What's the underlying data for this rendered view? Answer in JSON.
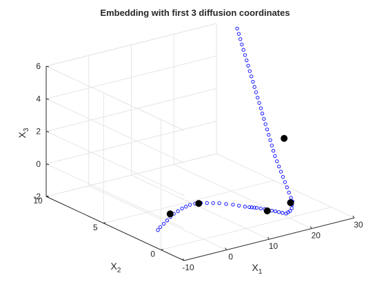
{
  "chart_data": {
    "type": "scatter",
    "projection": "3d",
    "title": "Embedding with first 3 diffusion coordinates",
    "xlabel": "X",
    "xlabel_sub": "1",
    "ylabel": "X",
    "ylabel_sub": "2",
    "zlabel": "X",
    "zlabel_sub": "3",
    "xlim": [
      -10,
      30
    ],
    "ylim": [
      -2,
      10
    ],
    "zlim": [
      -2,
      6
    ],
    "xticks": [
      "-10",
      "0",
      "10",
      "20",
      "30"
    ],
    "yticks": [
      "0",
      "5",
      "10"
    ],
    "zticks": [
      "-2",
      "0",
      "2",
      "4",
      "6"
    ],
    "grid": true,
    "colors": {
      "series": "#0000ff",
      "highlight": "#000000",
      "axis": "#262626",
      "grid": "#e6e6e6"
    },
    "series": [
      {
        "marker": "open-circle",
        "color": "#0000ff",
        "x": [
          -4.0,
          -2.6,
          -1.0,
          0.6,
          2.2,
          3.8,
          5.3,
          6.8,
          8.0,
          9.2,
          10.4,
          11.5,
          12.4,
          13.3,
          14.2,
          15.0,
          15.8,
          16.4,
          17.0,
          17.5,
          17.8,
          18.1,
          18.4,
          18.8,
          19.2,
          19.5,
          19.8,
          20.1,
          20.4,
          20.7,
          21.0,
          21.2,
          21.4,
          21.5,
          21.6,
          21.7,
          21.6,
          21.4,
          21.2,
          21.0,
          20.8,
          20.6,
          20.4,
          20.2,
          20.0,
          19.9,
          19.8,
          19.7,
          19.6,
          19.5,
          19.4,
          19.3,
          19.2,
          19.1,
          19.0,
          18.9,
          18.8,
          18.7,
          18.6,
          18.5,
          18.4,
          18.3,
          18.2,
          18.1,
          18.0,
          17.9,
          17.8,
          17.7,
          17.6
        ],
        "y": [
          2.5,
          2.8,
          3.1,
          3.4,
          3.7,
          4.0,
          4.2,
          4.4,
          4.5,
          4.6,
          4.6,
          4.5,
          4.3,
          4.1,
          3.9,
          3.6,
          3.3,
          3.0,
          2.7,
          2.5,
          2.4,
          2.3,
          2.2,
          2.0,
          1.8,
          1.6,
          1.4,
          1.2,
          1.0,
          0.8,
          0.6,
          0.5,
          0.4,
          0.3,
          0.3,
          0.3,
          0.4,
          0.5,
          0.6,
          0.7,
          0.8,
          0.9,
          1.0,
          1.1,
          1.2,
          1.3,
          1.4,
          1.5,
          1.6,
          1.7,
          1.8,
          1.9,
          2.0,
          2.1,
          2.2,
          2.3,
          2.4,
          2.5,
          2.6,
          2.7,
          2.8,
          2.9,
          3.0,
          3.1,
          3.2,
          3.3,
          3.4,
          3.5,
          3.6
        ],
        "z": [
          -2.0,
          -2.0,
          -2.0,
          -2.0,
          -2.0,
          -2.0,
          -2.0,
          -2.0,
          -2.0,
          -2.0,
          -2.0,
          -2.0,
          -2.0,
          -2.0,
          -2.0,
          -2.0,
          -2.0,
          -2.0,
          -2.0,
          -2.0,
          -2.0,
          -2.0,
          -2.0,
          -2.0,
          -2.0,
          -2.0,
          -2.0,
          -2.0,
          -2.0,
          -2.0,
          -2.0,
          -1.9,
          -1.8,
          -1.6,
          -1.4,
          -1.2,
          -1.0,
          -0.7,
          -0.4,
          -0.1,
          0.2,
          0.5,
          0.8,
          1.1,
          1.4,
          1.7,
          2.0,
          2.3,
          2.6,
          2.9,
          3.2,
          3.5,
          3.8,
          4.1,
          4.4,
          4.7,
          5.0,
          5.3,
          5.6,
          5.9,
          6.2,
          6.5,
          6.8,
          7.1,
          7.4,
          7.7,
          8.0,
          8.3,
          8.6
        ]
      },
      {
        "marker": "filled-circle",
        "color": "#000000",
        "x": [
          3.2,
          11.0,
          19.0,
          21.5,
          20.8
        ],
        "y": [
          4.1,
          4.5,
          1.5,
          0.4,
          0.7
        ],
        "z": [
          -2.0,
          -2.0,
          -2.0,
          -1.3,
          2.6
        ]
      }
    ]
  }
}
